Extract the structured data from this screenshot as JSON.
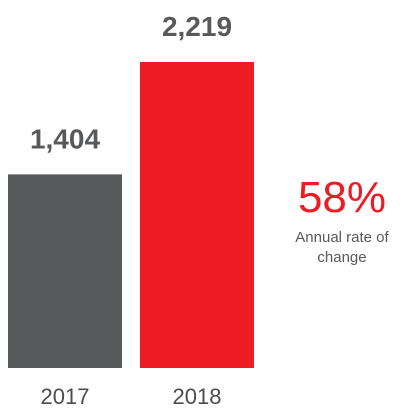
{
  "chart_data": {
    "type": "bar",
    "title": "",
    "xlabel": "",
    "ylabel": "",
    "categories": [
      "2017",
      "2018"
    ],
    "values": [
      1404,
      2219
    ],
    "value_labels": [
      "1,404",
      "2,219"
    ],
    "ylim": [
      0,
      2219
    ],
    "grid": false,
    "legend": "none",
    "colors": [
      "#58595b",
      "#ed1c24"
    ]
  },
  "annotation": {
    "value": "58%",
    "label": "Annual rate of change",
    "color": "#ed1c24"
  }
}
